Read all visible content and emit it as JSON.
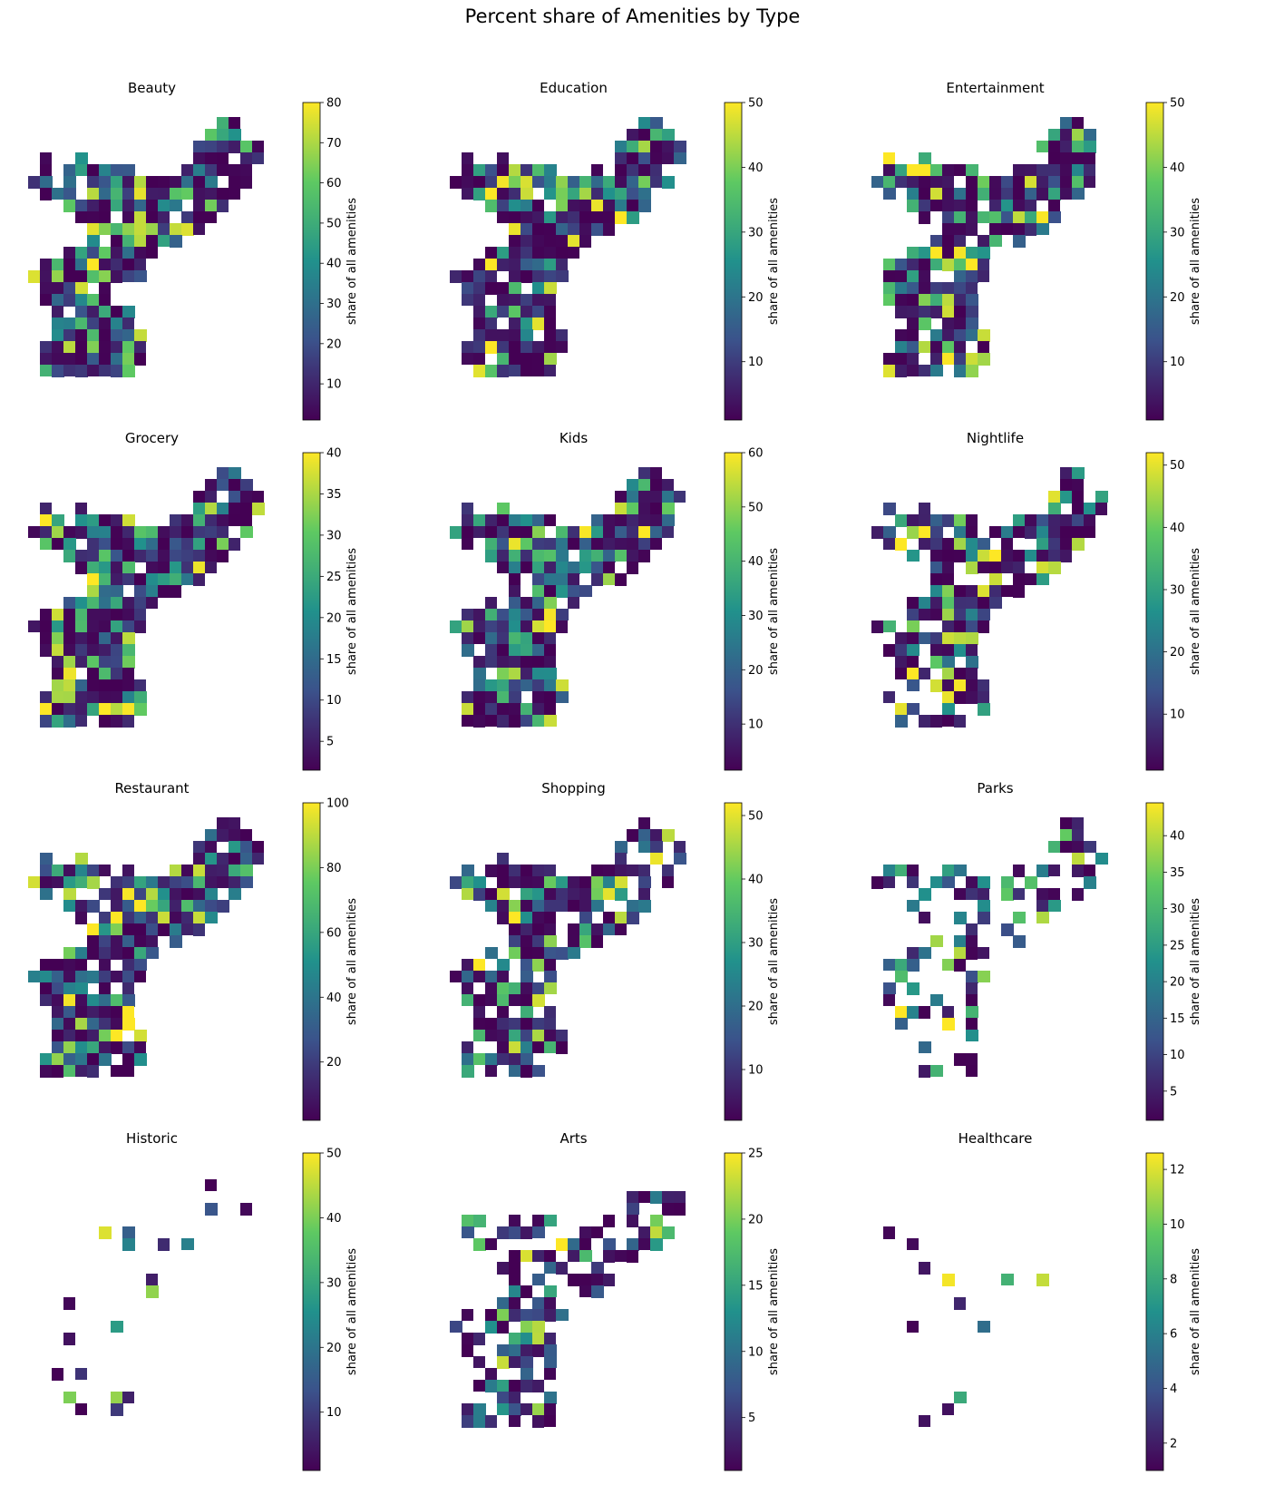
{
  "figure": {
    "title": "Percent share of Amenities by Type"
  },
  "colorbar_label": "share of all amenities",
  "colormap": [
    "#440154",
    "#3b528b",
    "#21918c",
    "#5ec962",
    "#fde725"
  ],
  "panels": [
    {
      "id": "beauty",
      "title": "Beauty",
      "vmin": 1,
      "vmax": 80,
      "ticks": [
        "10",
        "20",
        "30",
        "40",
        "50",
        "60",
        "70",
        "80"
      ],
      "tick_values": [
        10,
        20,
        30,
        40,
        50,
        60,
        70,
        80
      ]
    },
    {
      "id": "education",
      "title": "Education",
      "vmin": 1,
      "vmax": 50,
      "ticks": [
        "10",
        "20",
        "30",
        "40",
        "50"
      ],
      "tick_values": [
        10,
        20,
        30,
        40,
        50
      ]
    },
    {
      "id": "entertainment",
      "title": "Entertainment",
      "vmin": 1,
      "vmax": 50,
      "ticks": [
        "10",
        "20",
        "30",
        "40",
        "50"
      ],
      "tick_values": [
        10,
        20,
        30,
        40,
        50
      ]
    },
    {
      "id": "grocery",
      "title": "Grocery",
      "vmin": 1.5,
      "vmax": 40,
      "ticks": [
        "5",
        "10",
        "15",
        "20",
        "25",
        "30",
        "35",
        "40"
      ],
      "tick_values": [
        5,
        10,
        15,
        20,
        25,
        30,
        35,
        40
      ]
    },
    {
      "id": "kids",
      "title": "Kids",
      "vmin": 1.5,
      "vmax": 60,
      "ticks": [
        "10",
        "20",
        "30",
        "40",
        "50",
        "60"
      ],
      "tick_values": [
        10,
        20,
        30,
        40,
        50,
        60
      ]
    },
    {
      "id": "nightlife",
      "title": "Nightlife",
      "vmin": 1,
      "vmax": 52,
      "ticks": [
        "10",
        "20",
        "30",
        "40",
        "50"
      ],
      "tick_values": [
        10,
        20,
        30,
        40,
        50
      ]
    },
    {
      "id": "restaurant",
      "title": "Restaurant",
      "vmin": 2,
      "vmax": 100,
      "ticks": [
        "20",
        "40",
        "60",
        "80",
        "100"
      ],
      "tick_values": [
        20,
        40,
        60,
        80,
        100
      ]
    },
    {
      "id": "shopping",
      "title": "Shopping",
      "vmin": 2,
      "vmax": 52,
      "ticks": [
        "10",
        "20",
        "30",
        "40",
        "50"
      ],
      "tick_values": [
        10,
        20,
        30,
        40,
        50
      ]
    },
    {
      "id": "parks",
      "title": "Parks",
      "vmin": 1,
      "vmax": 44.5,
      "ticks": [
        "5",
        "10",
        "15",
        "20",
        "25",
        "30",
        "35",
        "40"
      ],
      "tick_values": [
        5,
        10,
        15,
        20,
        25,
        30,
        35,
        40
      ]
    },
    {
      "id": "historic",
      "title": "Historic",
      "vmin": 1,
      "vmax": 50,
      "ticks": [
        "10",
        "20",
        "30",
        "40",
        "50"
      ],
      "tick_values": [
        10,
        20,
        30,
        40,
        50
      ]
    },
    {
      "id": "arts",
      "title": "Arts",
      "vmin": 1,
      "vmax": 25,
      "ticks": [
        "5",
        "10",
        "15",
        "20",
        "25"
      ],
      "tick_values": [
        5,
        10,
        15,
        20,
        25
      ]
    },
    {
      "id": "healthcare",
      "title": "Healthcare",
      "vmin": 1,
      "vmax": 12.6,
      "ticks": [
        "2",
        "4",
        "6",
        "8",
        "10",
        "12"
      ],
      "tick_values": [
        2,
        4,
        6,
        8,
        10,
        12
      ]
    }
  ]
}
